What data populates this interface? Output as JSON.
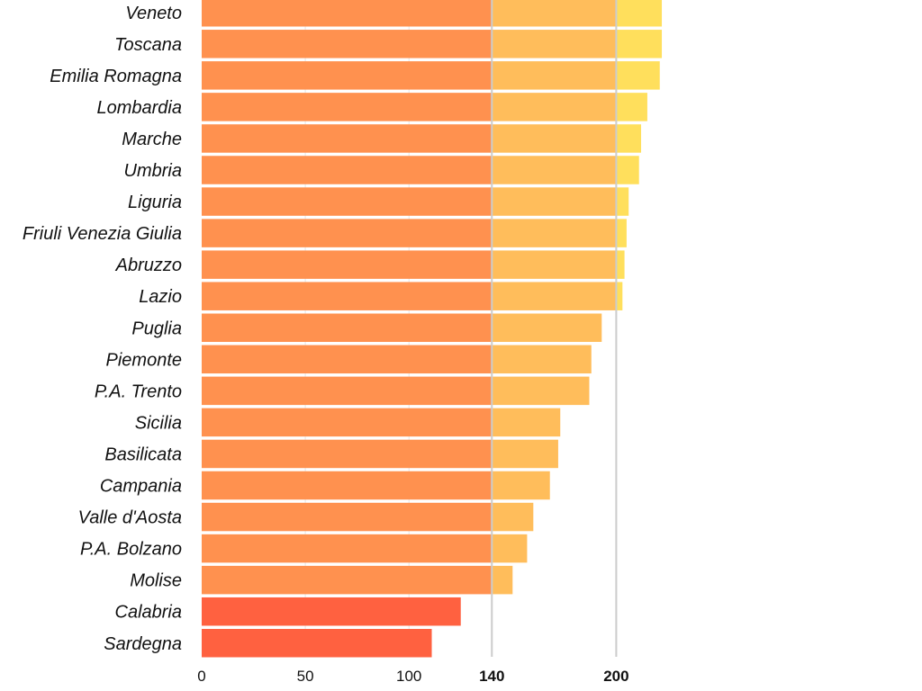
{
  "chart_data": {
    "type": "bar",
    "orientation": "horizontal",
    "stacked_bands": true,
    "band_thresholds": [
      140,
      200
    ],
    "colors": {
      "below_140": "#ff6140",
      "band_0_140": "#ff914f",
      "band_140_200": "#ffbd5b",
      "band_above_200": "#ffdf5c",
      "reference_line": "#cccccc",
      "grid": "#e6e6e6"
    },
    "categories": [
      "Veneto",
      "Toscana",
      "Emilia Romagna",
      "Lombardia",
      "Marche",
      "Umbria",
      "Liguria",
      "Friuli Venezia Giulia",
      "Abruzzo",
      "Lazio",
      "Puglia",
      "Piemonte",
      "P.A. Trento",
      "Sicilia",
      "Basilicata",
      "Campania",
      "Valle d'Aosta",
      "P.A. Bolzano",
      "Molise",
      "Calabria",
      "Sardegna"
    ],
    "values": [
      222,
      222,
      221,
      215,
      212,
      211,
      206,
      205,
      204,
      203,
      193,
      188,
      187,
      173,
      172,
      168,
      160,
      157,
      150,
      125,
      111
    ],
    "xlim": [
      0,
      226
    ],
    "xticks": [
      {
        "value": 0,
        "label": "0",
        "bold": false
      },
      {
        "value": 50,
        "label": "50",
        "bold": false
      },
      {
        "value": 100,
        "label": "100",
        "bold": false
      },
      {
        "value": 140,
        "label": "140",
        "bold": true
      },
      {
        "value": 200,
        "label": "200",
        "bold": true
      }
    ],
    "reference_lines": [
      140,
      200
    ],
    "grid_lines": [
      50,
      100
    ],
    "title": "",
    "xlabel": "",
    "ylabel": ""
  }
}
